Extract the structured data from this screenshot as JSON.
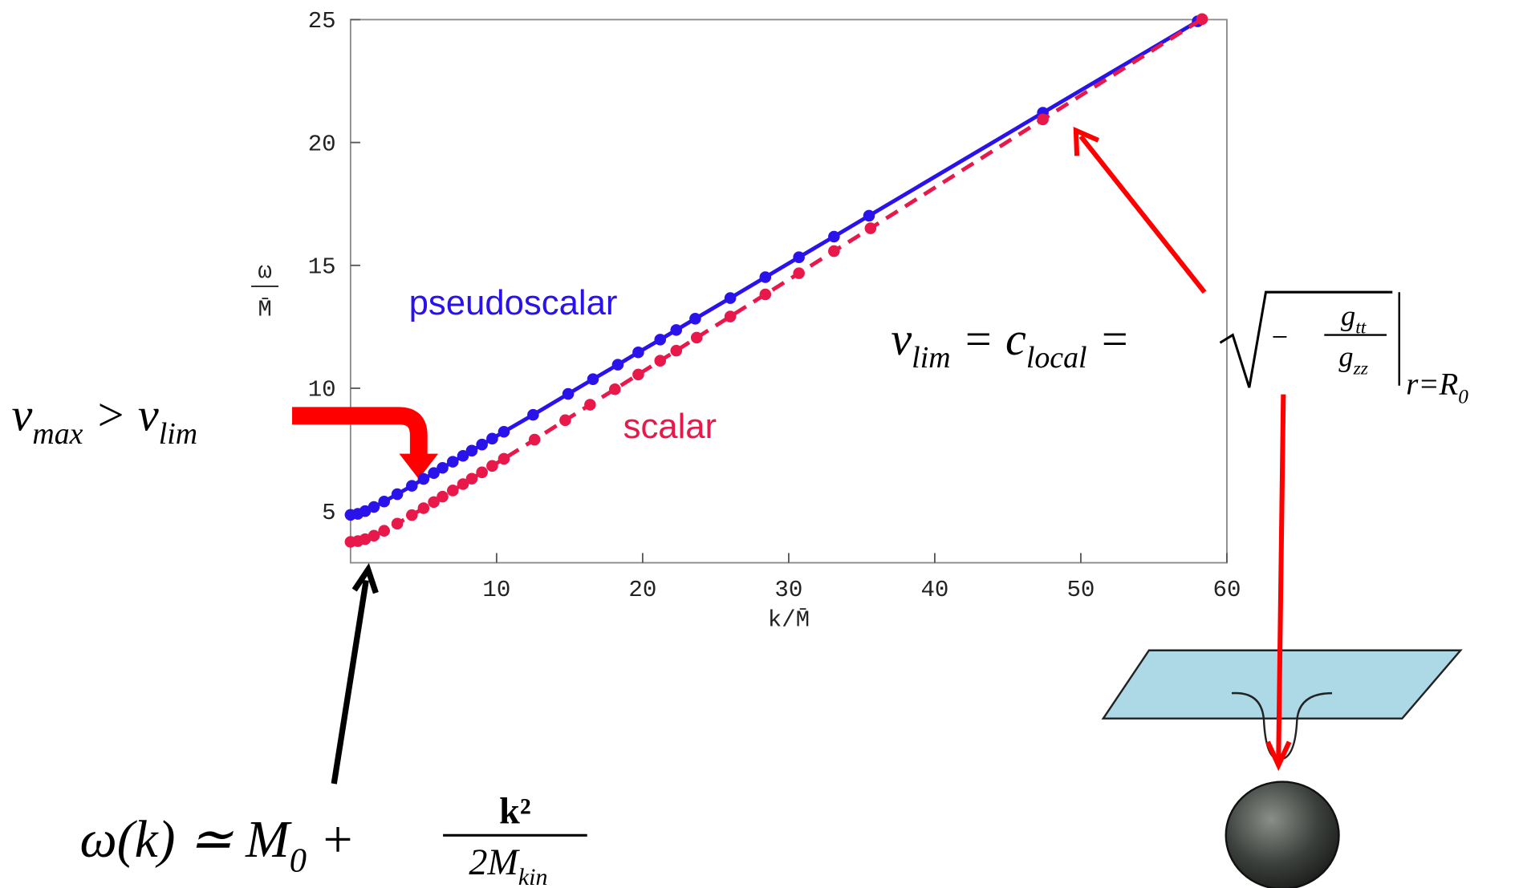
{
  "chart_data": {
    "type": "line",
    "xlabel": "k/M̄",
    "ylabel": [
      "ω",
      "M̄"
    ],
    "xlim": [
      0,
      60
    ],
    "ylim": [
      2.9,
      25
    ],
    "xticks": [
      10,
      20,
      30,
      40,
      50,
      60
    ],
    "yticks": [
      5,
      10,
      15,
      20,
      25
    ],
    "series": [
      {
        "name": "pseudoscalar",
        "color": "#2a12ea",
        "line_style": "solid",
        "x": [
          0,
          0.5,
          1,
          1.6,
          2.3,
          3.2,
          4.2,
          5,
          5.7,
          6.3,
          7,
          7.7,
          8.3,
          9,
          9.7,
          10.5,
          12.5,
          14.9,
          16.6,
          18.3,
          19.7,
          21.2,
          22.3,
          23.6,
          26,
          28.4,
          30.7,
          33.1,
          35.5,
          47.4,
          58
        ],
        "values": [
          4.85,
          4.89,
          5.0,
          5.17,
          5.39,
          5.69,
          6.03,
          6.31,
          6.55,
          6.76,
          7.01,
          7.25,
          7.46,
          7.71,
          7.95,
          8.23,
          8.92,
          9.77,
          10.37,
          10.96,
          11.46,
          11.98,
          12.37,
          12.83,
          13.67,
          14.52,
          15.33,
          16.17,
          17.02,
          21.21,
          24.93
        ]
      },
      {
        "name": "scalar",
        "color": "#e8184a",
        "line_style": "dashed",
        "x": [
          0,
          0.5,
          1,
          1.6,
          2.3,
          3.2,
          4.2,
          5,
          5.7,
          6.3,
          7,
          7.7,
          8.3,
          9,
          9.7,
          10.5,
          12.6,
          14.7,
          16.4,
          18.1,
          19.7,
          21.2,
          22.3,
          23.7,
          26,
          28.4,
          30.7,
          33.1,
          35.6,
          47.4,
          58.3
        ],
        "values": [
          3.75,
          3.78,
          3.86,
          4.0,
          4.2,
          4.49,
          4.84,
          5.12,
          5.37,
          5.59,
          5.84,
          6.1,
          6.32,
          6.58,
          6.84,
          7.13,
          7.91,
          8.7,
          9.33,
          9.96,
          10.56,
          11.12,
          11.53,
          12.06,
          12.92,
          13.82,
          14.68,
          15.58,
          16.51,
          20.94,
          25.02
        ]
      }
    ],
    "annotations": {
      "vmax": [
        "v",
        "max",
        " > v",
        "lim"
      ],
      "dispersion": {
        "main": [
          "ω(k) ≃ M",
          "0",
          " +"
        ],
        "numerator": "k²",
        "denominator": [
          "2M",
          "kin"
        ]
      },
      "vlim": {
        "main": [
          "v",
          "lim",
          " = c",
          "local",
          " ="
        ],
        "sign": "−",
        "numerator": [
          "g",
          "tt"
        ],
        "denominator": [
          "g",
          "zz"
        ],
        "at": [
          "r=R",
          "0"
        ]
      }
    }
  }
}
